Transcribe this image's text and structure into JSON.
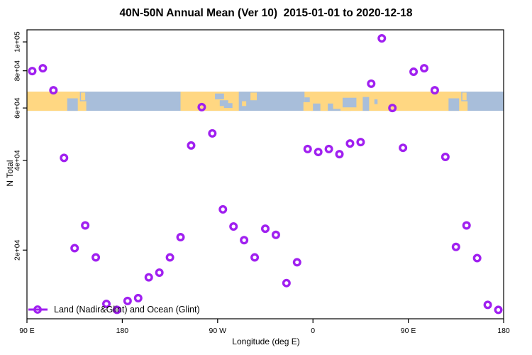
{
  "title": "40N-50N Annual Mean (Ver 10)  2015-01-01 to 2020-12-18",
  "legend": {
    "label": "Land (Nadir&Glint) and Ocean (Glint)"
  },
  "chart_data": {
    "type": "scatter",
    "title": "40N-50N Annual Mean (Ver 10)  2015-01-01 to 2020-12-18",
    "xlabel": "Longitude (deg E)",
    "ylabel": "N Total",
    "grid": false,
    "legend_position": "bottom-left",
    "marker": {
      "shape": "open-circle",
      "color": "#A020F0"
    },
    "x_axis": {
      "label": "Longitude (deg E)",
      "range": [
        90,
        540
      ],
      "note": "longitude increases eastward from 90E and wraps past 180 and 0",
      "ticks": [
        {
          "pos": 90,
          "label": "90 E"
        },
        {
          "pos": 180,
          "label": "180"
        },
        {
          "pos": 270,
          "label": "90 W"
        },
        {
          "pos": 360,
          "label": "0"
        },
        {
          "pos": 450,
          "label": "90 E"
        },
        {
          "pos": 540,
          "label": "180"
        }
      ]
    },
    "y_axis": {
      "label": "N Total",
      "scale": "log10",
      "range": [
        11760,
        109800
      ],
      "ticks": [
        {
          "value": 20000,
          "label": "2e+04"
        },
        {
          "value": 40000,
          "label": "4e+04"
        },
        {
          "value": 60000,
          "label": "6e+04"
        },
        {
          "value": 80000,
          "label": "8e+04"
        },
        {
          "value": 100000,
          "label": "1e+05"
        }
      ]
    },
    "series": [
      {
        "name": "Land (Nadir&Glint) and Ocean (Glint)",
        "color": "#A020F0",
        "points_format": [
          "longitude_on_plot_axis_deg",
          "n_total"
        ],
        "points": [
          [
            95,
            79800
          ],
          [
            105,
            81600
          ],
          [
            115,
            68800
          ],
          [
            125,
            40800
          ],
          [
            135,
            20300
          ],
          [
            145,
            24200
          ],
          [
            155,
            18900
          ],
          [
            165,
            13200
          ],
          [
            175,
            12600
          ],
          [
            185,
            13500
          ],
          [
            195,
            13800
          ],
          [
            205,
            16200
          ],
          [
            215,
            16800
          ],
          [
            225,
            18900
          ],
          [
            235,
            22100
          ],
          [
            245,
            44900
          ],
          [
            255,
            60400
          ],
          [
            265,
            49300
          ],
          [
            275,
            27400
          ],
          [
            285,
            24000
          ],
          [
            295,
            21600
          ],
          [
            305,
            18900
          ],
          [
            315,
            23600
          ],
          [
            325,
            22500
          ],
          [
            335,
            15500
          ],
          [
            345,
            18200
          ],
          [
            355,
            43700
          ],
          [
            365,
            42700
          ],
          [
            375,
            43700
          ],
          [
            385,
            42000
          ],
          [
            395,
            45600
          ],
          [
            405,
            46100
          ],
          [
            415,
            72400
          ],
          [
            425,
            102800
          ],
          [
            435,
            60000
          ],
          [
            445,
            44100
          ],
          [
            455,
            79400
          ],
          [
            465,
            81600
          ],
          [
            475,
            68800
          ],
          [
            485,
            41100
          ],
          [
            495,
            20500
          ],
          [
            505,
            24200
          ],
          [
            515,
            18800
          ],
          [
            525,
            13100
          ],
          [
            535,
            12600
          ]
        ]
      }
    ],
    "map_band": {
      "description": "40N-50N world-map strip drawn across the plot; land orange, ocean blue",
      "lat_range": "40N-50N",
      "top_value": 68100,
      "bottom_value": 58700,
      "land_color": "#FFD782",
      "ocean_color": "#A8BEDA",
      "rect_format": [
        "lon_start",
        "lon_end",
        "v_top_0to1",
        "v_bottom_0to1"
      ],
      "land": [
        [
          90,
          140,
          0,
          1
        ],
        [
          235,
          290,
          0,
          1
        ],
        [
          352,
          500,
          0,
          1
        ]
      ],
      "water": [
        [
          128,
          138,
          0.35,
          1
        ],
        [
          267.5,
          276,
          0.1,
          0.4
        ],
        [
          272,
          280,
          0.45,
          0.75
        ],
        [
          276,
          284,
          0.6,
          0.85
        ],
        [
          352,
          357,
          0.3,
          0.62
        ],
        [
          358,
          396,
          0.62,
          1
        ],
        [
          388,
          401,
          0.32,
          0.88
        ],
        [
          407,
          413,
          0.28,
          1
        ],
        [
          418,
          421,
          0.4,
          0.65
        ],
        [
          488,
          498,
          0.35,
          1
        ]
      ],
      "islands": [
        [
          139,
          146,
          0.5,
          1
        ],
        [
          141,
          145,
          0.05,
          0.45
        ],
        [
          293,
          297,
          0.5,
          0.75
        ],
        [
          301,
          307,
          0.05,
          0.45
        ],
        [
          351,
          360,
          0.55,
          1
        ],
        [
          367,
          374,
          0.45,
          1
        ],
        [
          379,
          388,
          0.6,
          0.9
        ],
        [
          386,
          405,
          0.82,
          1
        ],
        [
          499,
          506,
          0.5,
          1
        ],
        [
          501,
          505,
          0.05,
          0.45
        ]
      ]
    }
  }
}
